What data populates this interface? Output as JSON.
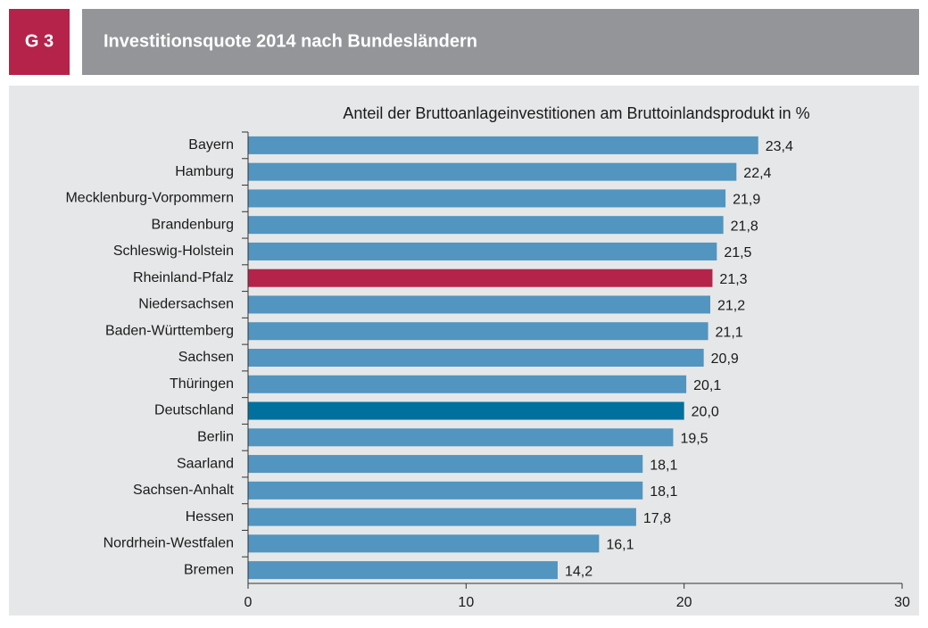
{
  "chart_data": {
    "type": "barh",
    "label": "G 3",
    "title": "Investitionsquote 2014 nach Bundesländern",
    "subtitle": "Anteil der Bruttoanlageinvestitionen am Bruttoinlandsprodukt in %",
    "categories": [
      "Bayern",
      "Hamburg",
      "Mecklenburg-Vorpommern",
      "Brandenburg",
      "Schleswig-Holstein",
      "Rheinland-Pfalz",
      "Niedersachsen",
      "Baden-Württemberg",
      "Sachsen",
      "Thüringen",
      "Deutschland",
      "Berlin",
      "Saarland",
      "Sachsen-Anhalt",
      "Hessen",
      "Nordrhein-Westfalen",
      "Bremen"
    ],
    "values": [
      23.4,
      22.4,
      21.9,
      21.8,
      21.5,
      21.3,
      21.2,
      21.1,
      20.9,
      20.1,
      20.0,
      19.5,
      18.1,
      18.1,
      17.8,
      16.1,
      14.2
    ],
    "value_labels": [
      "23,4",
      "22,4",
      "21,9",
      "21,8",
      "21,5",
      "21,3",
      "21,2",
      "21,1",
      "20,9",
      "20,1",
      "20,0",
      "19,5",
      "18,1",
      "18,1",
      "17,8",
      "16,1",
      "14,2"
    ],
    "colors": [
      "#5195c0",
      "#5195c0",
      "#5195c0",
      "#5195c0",
      "#5195c0",
      "#b5234a",
      "#5195c0",
      "#5195c0",
      "#5195c0",
      "#5195c0",
      "#00709e",
      "#5195c0",
      "#5195c0",
      "#5195c0",
      "#5195c0",
      "#5195c0",
      "#5195c0"
    ],
    "xlim": [
      0,
      30
    ],
    "xticks": [
      0,
      10,
      20,
      30
    ]
  }
}
